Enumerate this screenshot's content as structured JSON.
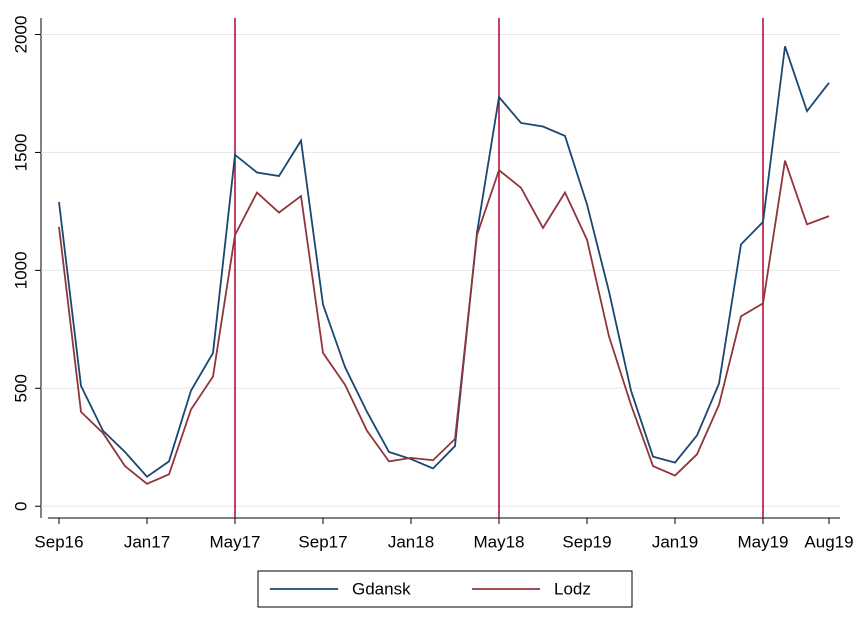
{
  "chart_data": {
    "type": "line",
    "categories": [
      "Sep16",
      null,
      null,
      null,
      "Jan17",
      null,
      null,
      null,
      "May17",
      null,
      null,
      null,
      "Sep17",
      null,
      null,
      null,
      "Jan18",
      null,
      null,
      null,
      "May18",
      null,
      null,
      null,
      "Sep19",
      null,
      null,
      null,
      "Jan19",
      null,
      null,
      null,
      "May19",
      null,
      null,
      "Aug19"
    ],
    "series": [
      {
        "name": "Gdansk",
        "color": "#1a476f",
        "values": [
          1290,
          510,
          320,
          230,
          125,
          190,
          490,
          650,
          1490,
          1415,
          1400,
          1550,
          855,
          590,
          400,
          230,
          200,
          160,
          255,
          1160,
          1735,
          1625,
          1610,
          1570,
          1280,
          910,
          490,
          210,
          185,
          300,
          520,
          1110,
          1205,
          1950,
          1675,
          1795
        ]
      },
      {
        "name": "Lodz",
        "color": "#90353b",
        "values": [
          1185,
          400,
          310,
          170,
          95,
          135,
          410,
          550,
          1150,
          1330,
          1245,
          1315,
          650,
          515,
          320,
          190,
          205,
          195,
          285,
          1150,
          1425,
          1350,
          1180,
          1330,
          1130,
          720,
          430,
          170,
          130,
          220,
          430,
          805,
          860,
          1465,
          1195,
          1230
        ]
      }
    ],
    "vlines": [
      "May17",
      "May18",
      "May19"
    ],
    "vline_color": "#b3123e",
    "ylim": [
      -50,
      2070
    ],
    "yticks": [
      0,
      500,
      1000,
      1500,
      2000
    ],
    "grid": true,
    "legend": "bottom"
  }
}
